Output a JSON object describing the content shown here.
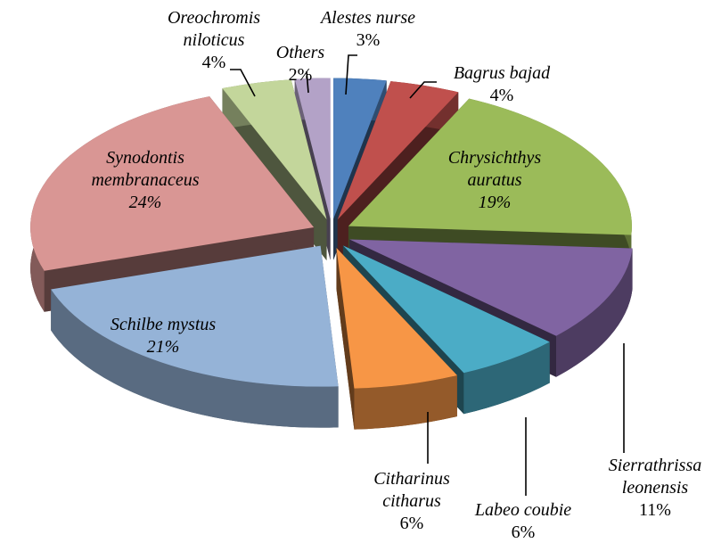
{
  "chart_data": {
    "type": "pie",
    "categories": [
      "Alestes nurse",
      "Bagrus bajad",
      "Chrysichthys auratus",
      "Sierrathrissa leonensis",
      "Labeo coubie",
      "Citharinus citharus",
      "Schilbe mystus",
      "Synodontis membranaceus",
      "Oreochromis niloticus",
      "Others"
    ],
    "values": [
      3,
      4,
      19,
      11,
      6,
      6,
      21,
      24,
      4,
      2
    ],
    "value_labels": [
      "3%",
      "4%",
      "19%",
      "11%",
      "6%",
      "6%",
      "21%",
      "24%",
      "4%",
      "2%"
    ],
    "colors": [
      "#4f81bd",
      "#c0504d",
      "#9bbb59",
      "#8064a2",
      "#4bacc6",
      "#f79646",
      "#95b3d7",
      "#d99694",
      "#c3d69b",
      "#b3a2c7"
    ]
  }
}
